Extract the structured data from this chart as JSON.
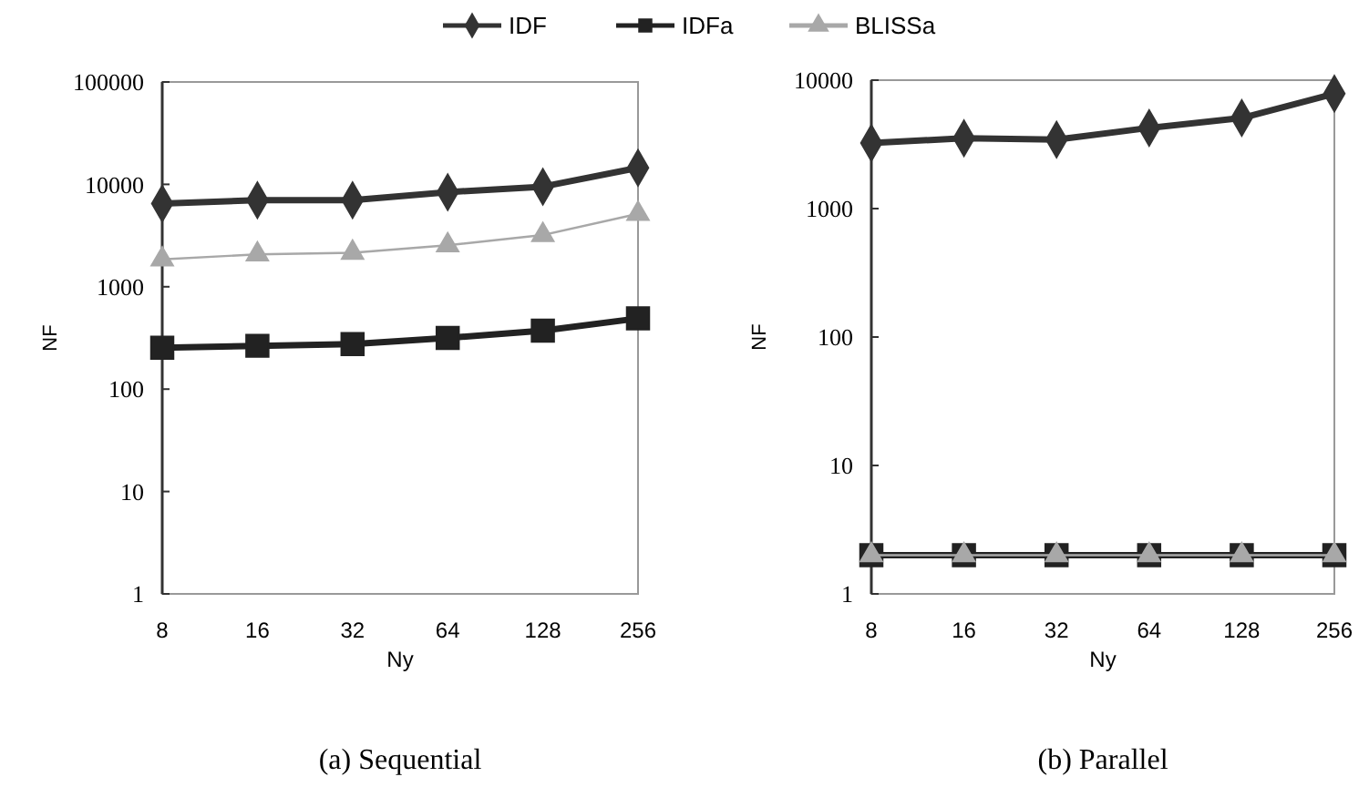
{
  "chart_data": [
    {
      "type": "line",
      "title": "(a) Sequential",
      "xlabel": "Ny",
      "ylabel": "NF",
      "categories": [
        "8",
        "16",
        "32",
        "64",
        "128",
        "256"
      ],
      "log": "y",
      "ylim": [
        1,
        100000
      ],
      "yticks": [
        1,
        10,
        100,
        1000,
        10000,
        100000
      ],
      "legend": "top",
      "grid": false,
      "series": [
        {
          "name": "IDF",
          "color": "#333333",
          "marker": "diamond",
          "values": [
            6500,
            7000,
            7000,
            8400,
            9500,
            14500
          ]
        },
        {
          "name": "IDFa",
          "color": "#222222",
          "marker": "square",
          "values": [
            254,
            265,
            275,
            316,
            372,
            490
          ]
        },
        {
          "name": "BLISSa",
          "color": "#a8a8a8",
          "marker": "triangle",
          "values": [
            1850,
            2070,
            2150,
            2540,
            3200,
            5150
          ]
        }
      ]
    },
    {
      "type": "line",
      "title": "(b) Parallel",
      "xlabel": "Ny",
      "ylabel": "NF",
      "categories": [
        "8",
        "16",
        "32",
        "64",
        "128",
        "256"
      ],
      "log": "y",
      "ylim": [
        1,
        10000
      ],
      "yticks": [
        1,
        10,
        100,
        1000,
        10000
      ],
      "grid": false,
      "series": [
        {
          "color": "#333333",
          "marker": "diamond",
          "values": [
            3240,
            3530,
            3450,
            4250,
            5070,
            7850
          ]
        },
        {
          "color": "#222222",
          "marker": "square",
          "values": [
            2,
            2,
            2,
            2,
            2,
            2
          ]
        },
        {
          "color": "#a8a8a8",
          "marker": "triangle",
          "values": [
            2,
            2,
            2,
            2,
            2,
            2
          ]
        }
      ]
    }
  ]
}
